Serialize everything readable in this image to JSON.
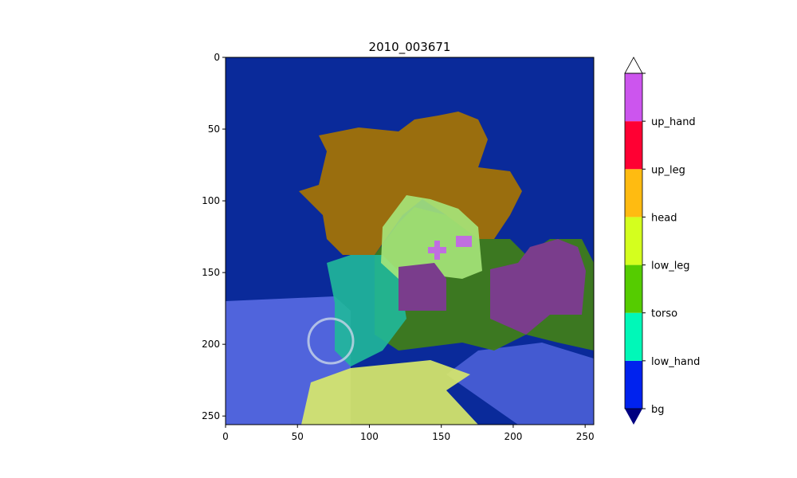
{
  "chart_data": {
    "type": "heatmap",
    "title": "2010_003671",
    "xlabel": "",
    "ylabel": "",
    "x_ticks": [
      0,
      50,
      100,
      150,
      200,
      250
    ],
    "y_ticks": [
      0,
      50,
      100,
      150,
      200,
      250
    ],
    "xlim": [
      0,
      256
    ],
    "ylim": [
      256,
      0
    ],
    "image_size": [
      256,
      256
    ],
    "colorbar": {
      "labels": [
        "bg",
        "low_hand",
        "torso",
        "low_leg",
        "head",
        "up_leg",
        "up_hand"
      ],
      "colors": [
        "#0022ee",
        "#00f8b8",
        "#55cc00",
        "#d4ff1e",
        "#ffbb11",
        "#ff0033",
        "#cc55ee"
      ],
      "under_color": "#000080",
      "over_color": "#ffffff",
      "extend": "both"
    }
  }
}
